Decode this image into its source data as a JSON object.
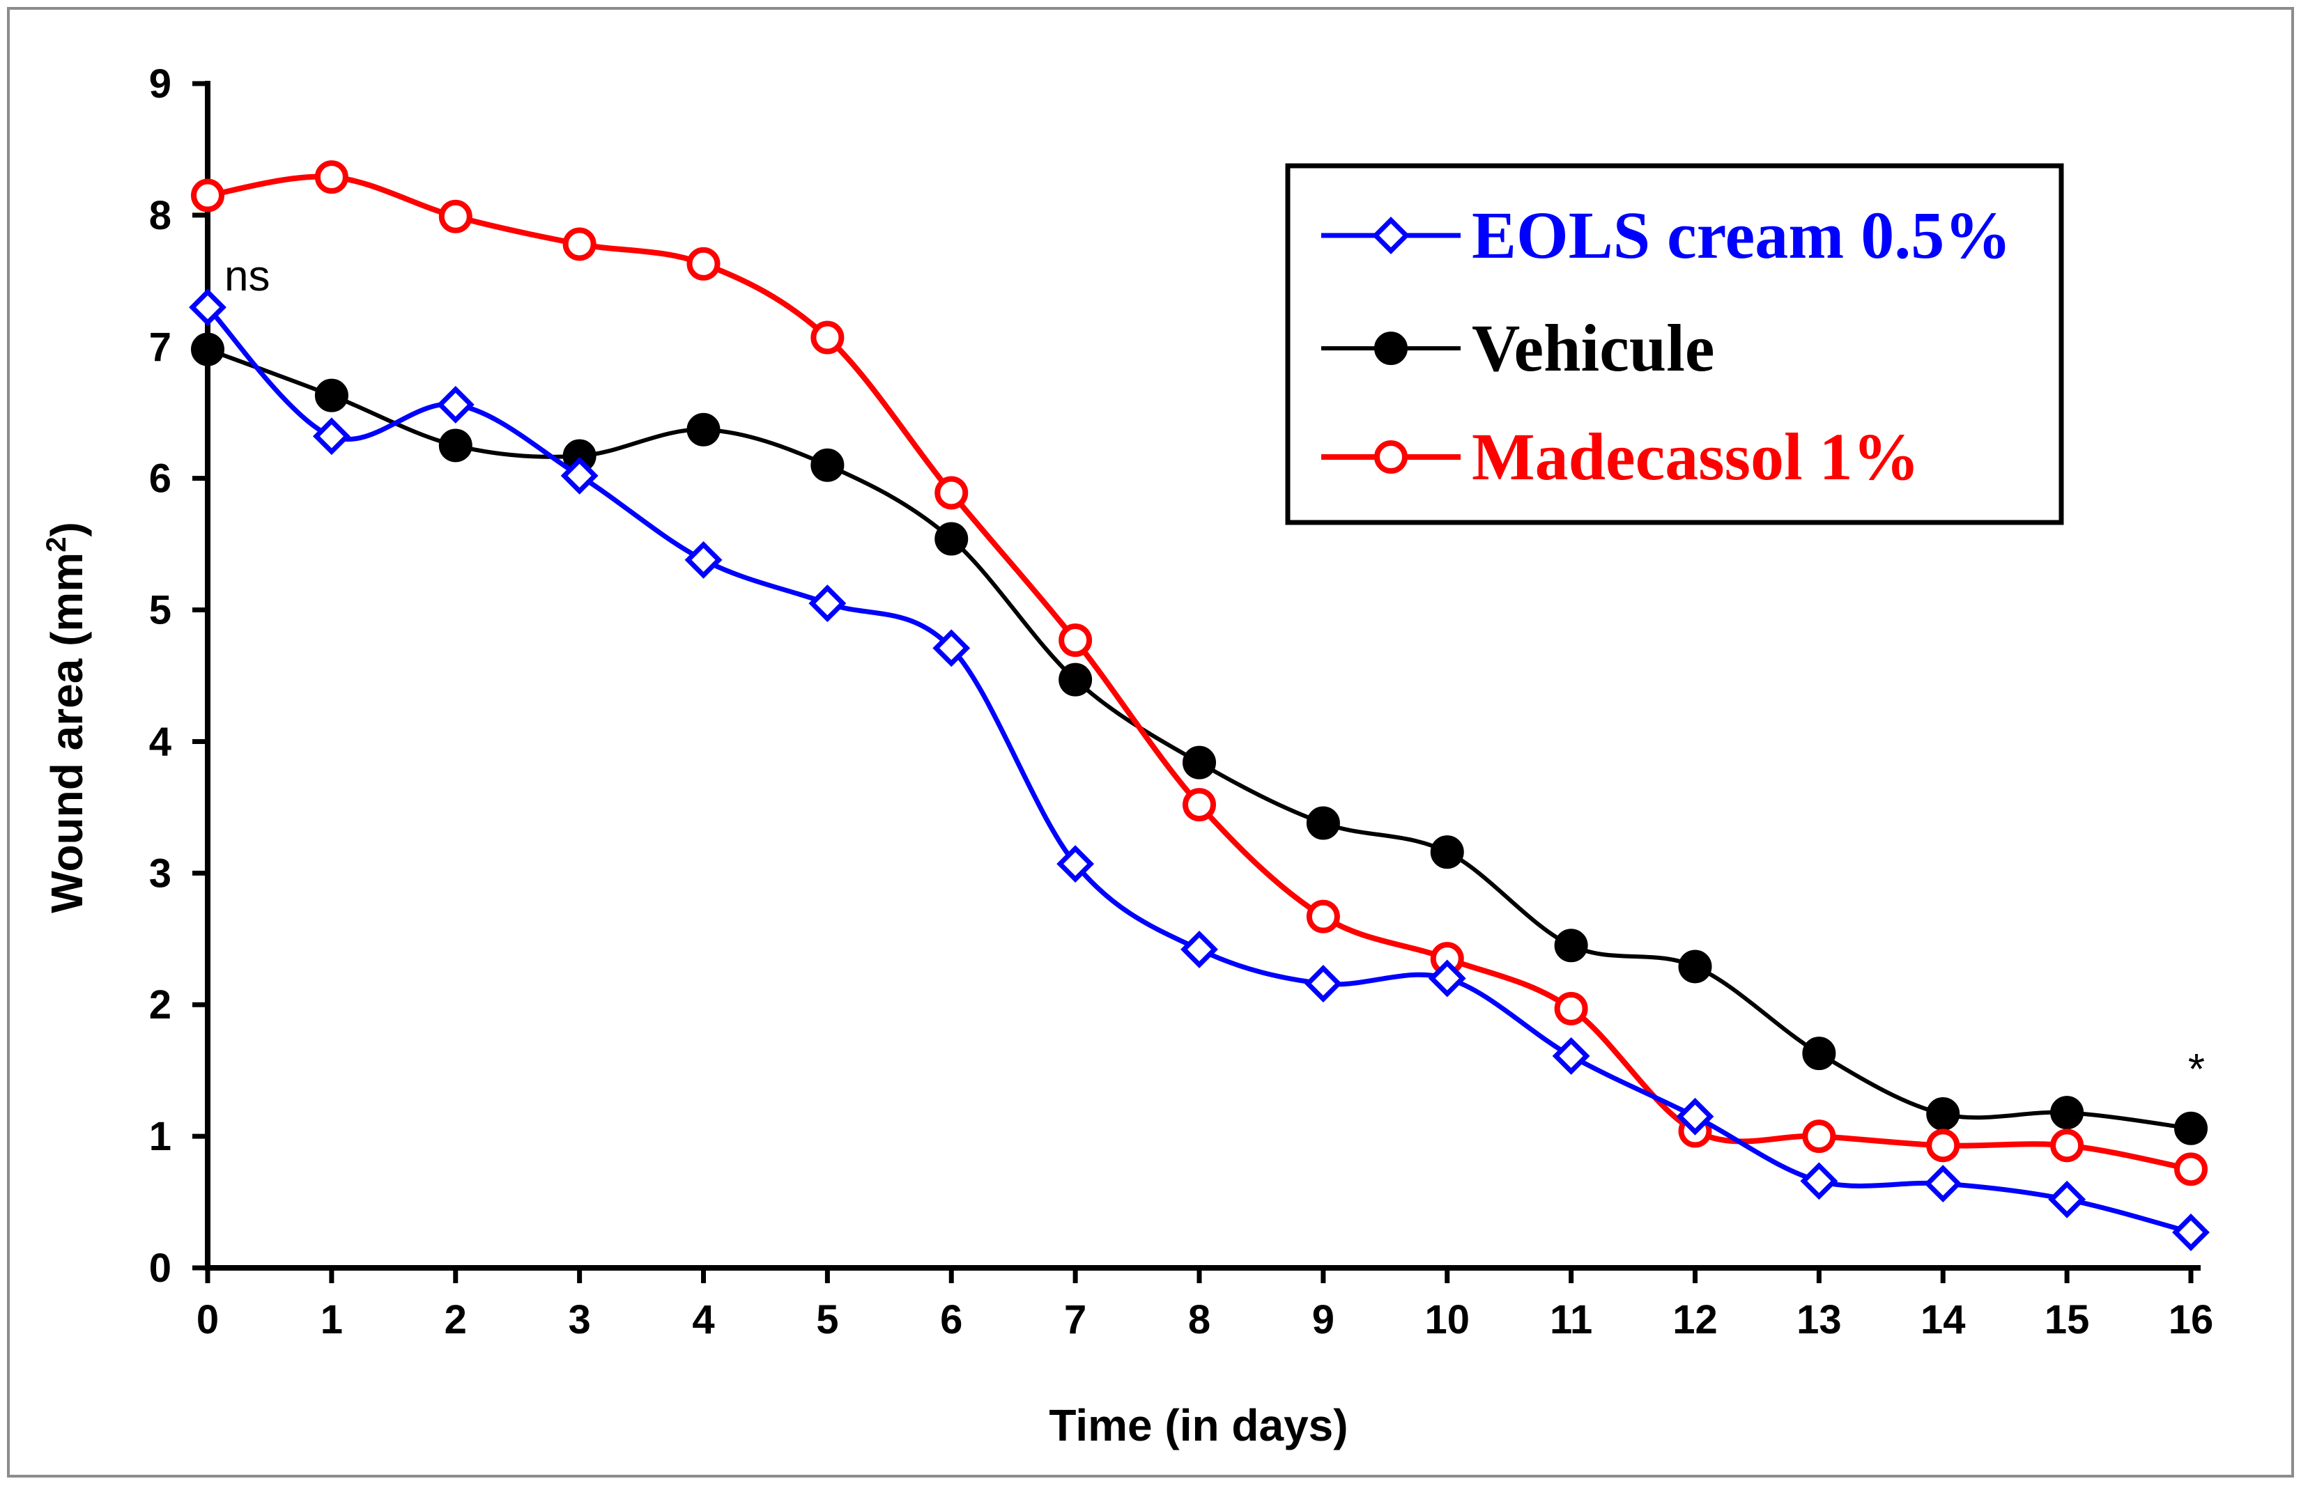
{
  "chart_data": {
    "type": "line",
    "x": [
      0,
      1,
      2,
      3,
      4,
      5,
      6,
      7,
      8,
      9,
      10,
      11,
      12,
      13,
      14,
      15,
      16
    ],
    "series": [
      {
        "name": "EOLS cream 0.5%",
        "color": "#0000ff",
        "marker": "diamond-open",
        "values": [
          7.3,
          6.32,
          6.56,
          6.02,
          5.38,
          5.05,
          4.71,
          3.07,
          2.42,
          2.16,
          2.2,
          1.61,
          1.15,
          0.66,
          0.64,
          0.52,
          0.27
        ]
      },
      {
        "name": "Vehicule",
        "color": "#000000",
        "marker": "circle-filled",
        "values": [
          6.98,
          6.63,
          6.25,
          6.17,
          6.37,
          6.1,
          5.54,
          4.47,
          3.84,
          3.38,
          3.16,
          2.45,
          2.29,
          1.63,
          1.17,
          1.18,
          1.06
        ]
      },
      {
        "name": "Madecassol 1%",
        "color": "#ff0000",
        "marker": "circle-open",
        "values": [
          8.15,
          8.29,
          7.99,
          7.78,
          7.63,
          7.07,
          5.89,
          4.77,
          3.52,
          2.67,
          2.35,
          1.97,
          1.04,
          1.0,
          0.93,
          0.93,
          0.75
        ]
      }
    ],
    "xlabel": "Time (in days)",
    "ylabel_main": "Wound area  (mm",
    "ylabel_sup": "2",
    "ylabel_close": ")",
    "xlim": [
      0,
      16
    ],
    "ylim": [
      0,
      9
    ],
    "xticks": [
      "0",
      "1",
      "2",
      "3",
      "4",
      "5",
      "6",
      "7",
      "8",
      "9",
      "10",
      "11",
      "12",
      "13",
      "14",
      "15",
      "16"
    ],
    "yticks": [
      "0",
      "1",
      "2",
      "3",
      "4",
      "5",
      "6",
      "7",
      "8",
      "9"
    ],
    "grid": false,
    "legend_position": "top-right",
    "annotations": [
      {
        "text": "ns",
        "x": 0,
        "y": 7.3
      },
      {
        "text": "*",
        "x": 16,
        "y": 1.06
      }
    ]
  }
}
